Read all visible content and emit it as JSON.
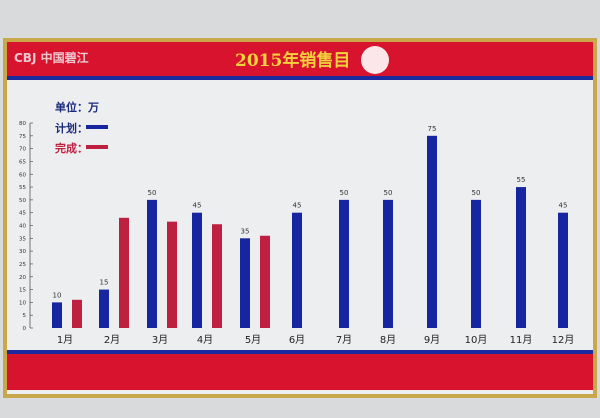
{
  "header": {
    "logo_text": "CBJ 中国碧江",
    "title": "2015年销售目"
  },
  "legend": {
    "unit_label": "单位：万",
    "plan_label": "计划：",
    "done_label": "完成："
  },
  "colors": {
    "band_red": "#d8132e",
    "band_blue": "#1b2a9c",
    "plan": "#1626a0",
    "done": "#c0203f",
    "title_gold": "#f2d33b",
    "frame_gold": "#c8a84a"
  },
  "chart_data": {
    "type": "bar",
    "title": "2015年销售目",
    "categories": [
      "1月",
      "2月",
      "3月",
      "4月",
      "5月",
      "6月",
      "7月",
      "8月",
      "9月",
      "10月",
      "11月",
      "12月"
    ],
    "series": [
      {
        "name": "计划",
        "values": [
          10,
          15,
          50,
          45,
          35,
          45,
          50,
          50,
          75,
          50,
          55,
          45
        ],
        "data_labels": [
          "10",
          "15",
          "50",
          "45",
          "35",
          "45",
          "50",
          "50",
          "75",
          "50",
          "55",
          "45"
        ]
      },
      {
        "name": "完成",
        "values": [
          11,
          43,
          41.5,
          40.5,
          36,
          null,
          null,
          null,
          null,
          null,
          null,
          null
        ]
      }
    ],
    "ylim": [
      0,
      80
    ],
    "yticks": [
      "0",
      "5",
      "10",
      "15",
      "20",
      "25",
      "30",
      "35",
      "40",
      "45",
      "50",
      "55",
      "60",
      "65",
      "70",
      "75",
      "80"
    ],
    "grid": false,
    "legend": "top-left"
  }
}
